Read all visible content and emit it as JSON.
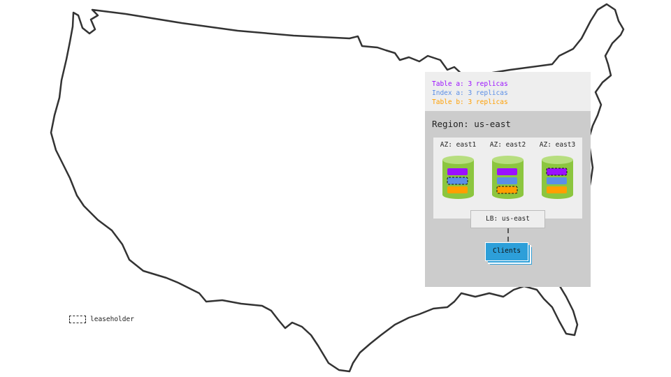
{
  "legend": [
    {
      "text": "Table a: 3 replicas",
      "color": "#9b10ff"
    },
    {
      "text": "Index a: 3 replicas",
      "color": "#5b8fe6"
    },
    {
      "text": "Table b: 3 replicas",
      "color": "#ff9f00"
    }
  ],
  "region": {
    "title": "Region: us-east"
  },
  "azs": [
    {
      "label": "AZ: east1",
      "leaseholder": "index-a"
    },
    {
      "label": "AZ: east2",
      "leaseholder": "table-b"
    },
    {
      "label": "AZ: east3",
      "leaseholder": "table-a"
    }
  ],
  "lb": {
    "label": "LB: us-east"
  },
  "clients": {
    "label": "Clients"
  },
  "leaseholder_legend": "leaseholder",
  "colors": {
    "cylinder": "#8cc63f",
    "cylinder_top": "#b7de7f",
    "table_a": "#9b10ff",
    "index_a": "#5b8fe6",
    "table_b": "#ff9f00",
    "clients": "#2d9fd9"
  }
}
